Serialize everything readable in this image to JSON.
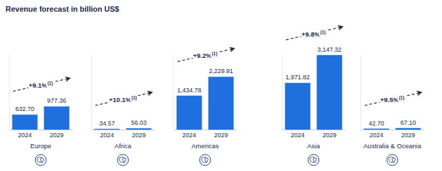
{
  "title": "Revenue forecast in billion US$",
  "chart_data": [
    {
      "type": "bar",
      "title": "Europe",
      "categories": [
        "2024",
        "2029"
      ],
      "values": [
        632.7,
        977.36
      ],
      "value_labels": [
        "632.70",
        "977.36"
      ],
      "annotations": [
        "+9.1%",
        "(1)"
      ],
      "color": "#1f6fde",
      "ylim": [
        0,
        3200
      ],
      "yticks": [],
      "tick_labels": "x",
      "data_labels": true
    },
    {
      "type": "bar",
      "title": "Africa",
      "categories": [
        "2024",
        "2029"
      ],
      "values": [
        34.57,
        56.03
      ],
      "value_labels": [
        "34.57",
        "56.03"
      ],
      "annotations": [
        "+10.1%",
        "(1)"
      ],
      "color": "#1f6fde",
      "ylim": [
        0,
        3200
      ],
      "yticks": [],
      "tick_labels": "x",
      "data_labels": true
    },
    {
      "type": "bar",
      "title": "Americas",
      "categories": [
        "2024",
        "2029"
      ],
      "values": [
        1434.78,
        2229.91
      ],
      "value_labels": [
        "1,434.78",
        "2,229.91"
      ],
      "annotations": [
        "+9.2%",
        "(1)"
      ],
      "color": "#1f6fde",
      "ylim": [
        0,
        3200
      ],
      "yticks": [],
      "tick_labels": "x",
      "data_labels": true
    },
    {
      "type": "bar",
      "title": "Asia",
      "categories": [
        "2024",
        "2029"
      ],
      "values": [
        1971.82,
        3147.32
      ],
      "value_labels": [
        "1,971.82",
        "3,147.32"
      ],
      "annotations": [
        "+9.8%",
        "(1)"
      ],
      "color": "#1f6fde",
      "ylim": [
        0,
        3200
      ],
      "yticks": [],
      "tick_labels": "x",
      "data_labels": true
    },
    {
      "type": "bar",
      "title": "Australia & Oceania",
      "categories": [
        "2024",
        "2029"
      ],
      "values": [
        42.7,
        67.1
      ],
      "value_labels": [
        "42.70",
        "67.10"
      ],
      "annotations": [
        "+9.5%",
        "(1)"
      ],
      "color": "#1f6fde",
      "ylim": [
        0,
        3200
      ],
      "yticks": [],
      "tick_labels": "x",
      "data_labels": true
    }
  ]
}
